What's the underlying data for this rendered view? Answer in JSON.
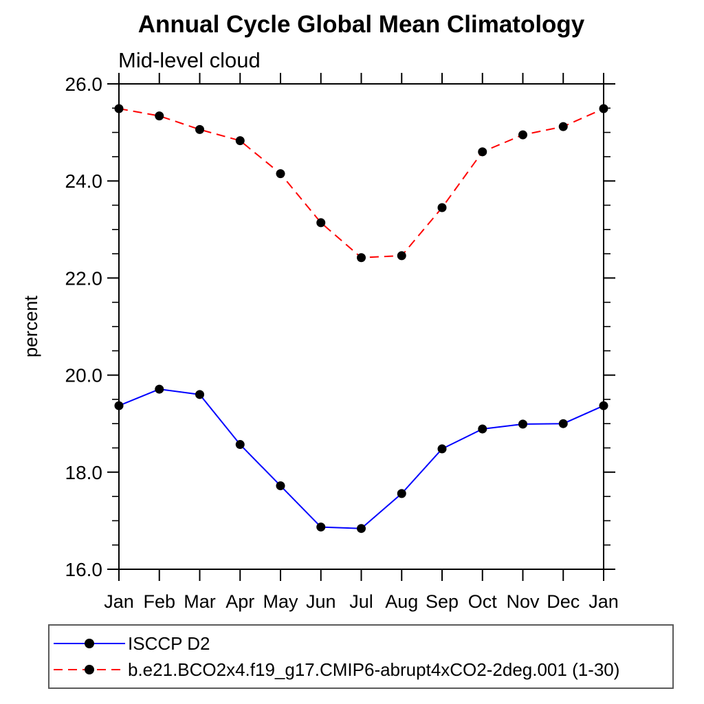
{
  "chart": {
    "title": "Annual Cycle Global Mean Climatology",
    "subtitle": "Mid-level cloud"
  },
  "chart_data": {
    "type": "line",
    "title": "Annual Cycle Global Mean Climatology",
    "subtitle": "Mid-level cloud",
    "xlabel": "",
    "ylabel": "percent",
    "categories": [
      "Jan",
      "Feb",
      "Mar",
      "Apr",
      "May",
      "Jun",
      "Jul",
      "Aug",
      "Sep",
      "Oct",
      "Nov",
      "Dec",
      "Jan"
    ],
    "ylim": [
      16.0,
      26.0
    ],
    "ytick_major": [
      16.0,
      18.0,
      20.0,
      22.0,
      24.0,
      26.0
    ],
    "ytick_major_labels": [
      "16.0",
      "18.0",
      "20.0",
      "22.0",
      "24.0",
      "26.0"
    ],
    "ytick_minor_step": 0.5,
    "grid": false,
    "legend_position": "bottom-left",
    "axis_color": "#000000",
    "marker_shape": "filled-circle",
    "series": [
      {
        "name": "ISCCP D2",
        "color": "#0000ff",
        "line_style": "solid",
        "marker_color": "#000000",
        "values": [
          19.37,
          19.71,
          19.6,
          18.57,
          17.72,
          16.87,
          16.84,
          17.56,
          18.48,
          18.89,
          18.99,
          19.0,
          19.37
        ]
      },
      {
        "name": "b.e21.BCO2x4.f19_g17.CMIP6-abrupt4xCO2-2deg.001 (1-30)",
        "color": "#ff0000",
        "line_style": "dashed",
        "marker_color": "#000000",
        "values": [
          25.49,
          25.34,
          25.06,
          24.83,
          24.15,
          23.14,
          22.42,
          22.46,
          23.45,
          24.6,
          24.95,
          25.12,
          25.49
        ]
      }
    ]
  }
}
